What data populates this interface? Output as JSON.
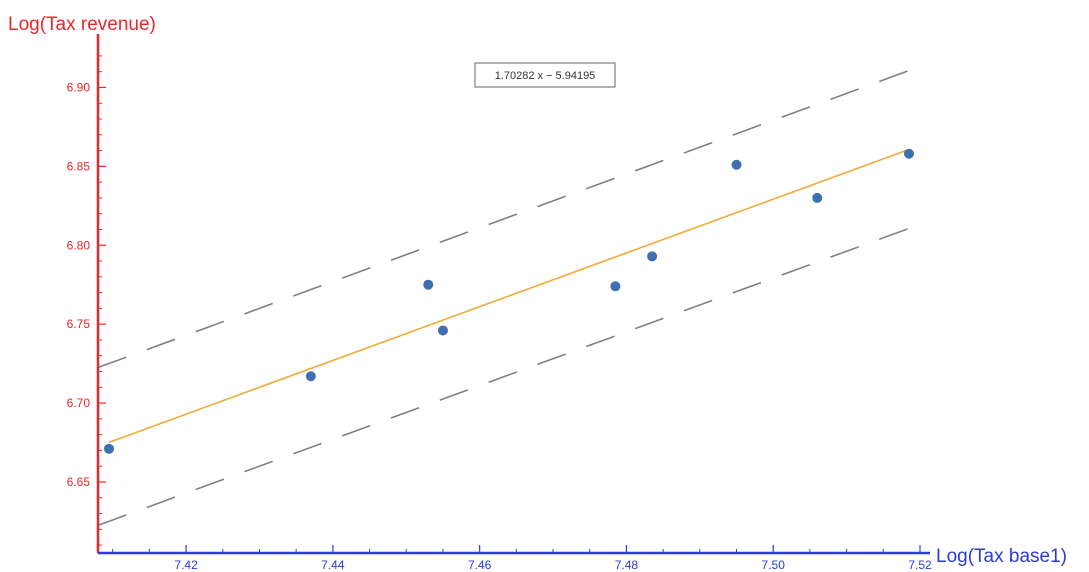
{
  "colors": {
    "y_axis": "#e8262b",
    "x_axis": "#2b3bd9",
    "points": "#3f6fb0",
    "fit_line": "#f0a830",
    "bands": "#808080"
  },
  "chart_data": {
    "type": "scatter",
    "title": "",
    "xlabel": "Log(Tax base1)",
    "ylabel": "Log(Tax revenue)",
    "xlim": [
      7.408,
      7.52
    ],
    "ylim": [
      6.605,
      6.925
    ],
    "x_ticks": [
      7.42,
      7.44,
      7.46,
      7.48,
      7.5,
      7.52
    ],
    "x_tick_labels": [
      "7.42",
      "7.44",
      "7.46",
      "7.48",
      "7.50",
      "7.52"
    ],
    "y_ticks": [
      6.65,
      6.7,
      6.75,
      6.8,
      6.85,
      6.9
    ],
    "y_tick_labels": [
      "6.65",
      "6.70",
      "6.75",
      "6.80",
      "6.85",
      "6.90"
    ],
    "grid": false,
    "legend": "none",
    "annotation": "1.70282 x − 5.94195",
    "fit": {
      "slope": 1.70282,
      "intercept": -5.94195
    },
    "band_offset": 0.05,
    "series": [
      {
        "x": [
          7.4095,
          7.437,
          7.453,
          7.455,
          7.4785,
          7.4835,
          7.495,
          7.506,
          7.5185
        ],
        "y": [
          6.671,
          6.717,
          6.775,
          6.746,
          6.774,
          6.793,
          6.851,
          6.83,
          6.858
        ]
      }
    ]
  }
}
